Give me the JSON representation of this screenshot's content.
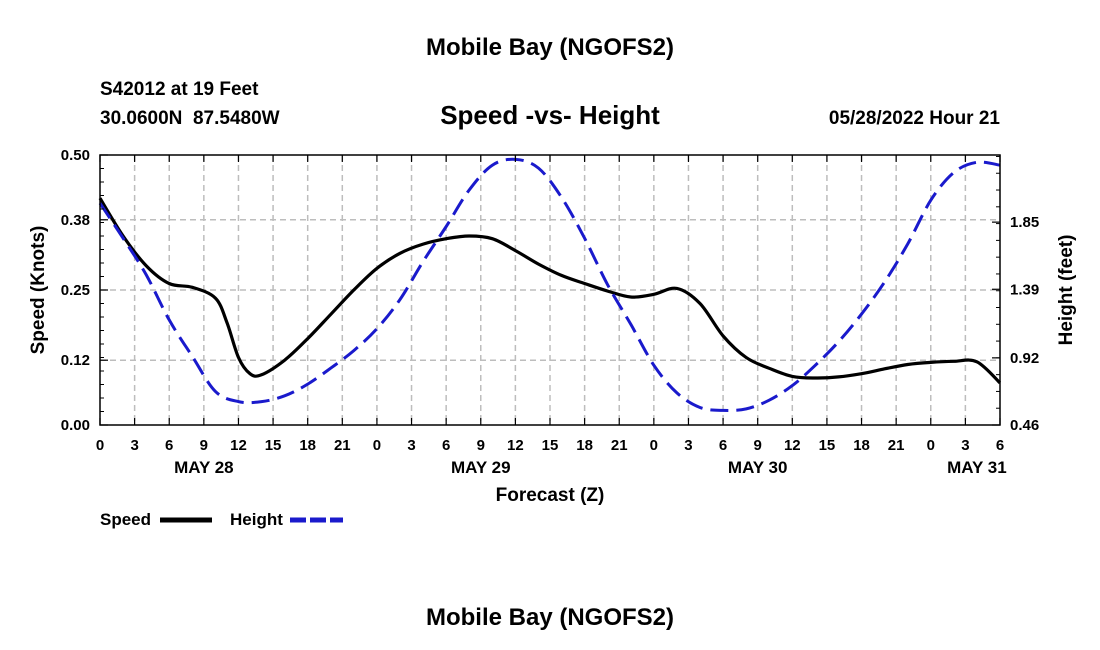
{
  "page": {
    "title": "Mobile Bay (NGOFS2)",
    "footer_title": "Mobile Bay (NGOFS2)"
  },
  "header": {
    "station_line": "S42012 at 19 Feet",
    "coords_line": "30.0600N  87.5480W",
    "chart_title": "Speed -vs- Height",
    "datetime": "05/28/2022 Hour 21"
  },
  "chart_data": {
    "type": "line",
    "title": "Speed -vs- Height",
    "xlabel": "Forecast (Z)",
    "ylabel_left": "Speed (Knots)",
    "ylabel_right": "Height (feet)",
    "x_range_hours": [
      0,
      78
    ],
    "x_tick_step_hours": 3,
    "x_tick_labels": [
      "0",
      "3",
      "6",
      "9",
      "12",
      "15",
      "18",
      "21",
      "0",
      "3",
      "6",
      "9",
      "12",
      "15",
      "18",
      "21",
      "0",
      "3",
      "6",
      "9",
      "12",
      "15",
      "18",
      "21",
      "0",
      "3",
      "6"
    ],
    "day_labels": [
      {
        "hour": 9,
        "label": "MAY 28"
      },
      {
        "hour": 33,
        "label": "MAY 29"
      },
      {
        "hour": 57,
        "label": "MAY 30"
      },
      {
        "hour": 76,
        "label": "MAY 31"
      }
    ],
    "y_left": {
      "range": [
        0.0,
        0.5
      ],
      "ticks": [
        0.0,
        0.12,
        0.25,
        0.38,
        0.5
      ],
      "tick_labels": [
        "0.00",
        "0.12",
        "0.25",
        "0.38",
        "0.50"
      ]
    },
    "y_right": {
      "range": [
        0.46,
        2.31
      ],
      "ticks": [
        0.46,
        0.92,
        1.39,
        1.85
      ],
      "tick_labels": [
        "0.46",
        "0.92",
        "1.39",
        "1.85"
      ]
    },
    "grid": true,
    "legend_position": "bottom-left",
    "series": [
      {
        "name": "Speed",
        "axis": "left",
        "color": "#000000",
        "style": "solid",
        "x": [
          0,
          2,
          4,
          6,
          8,
          10,
          11,
          12,
          13,
          14,
          16,
          18,
          20,
          22,
          24,
          26,
          28,
          30,
          32,
          34,
          36,
          38,
          40,
          42,
          44,
          46,
          48,
          50,
          52,
          54,
          56,
          58,
          60,
          62,
          64,
          66,
          68,
          70,
          72,
          74,
          76,
          78
        ],
        "y": [
          0.42,
          0.35,
          0.295,
          0.262,
          0.255,
          0.235,
          0.19,
          0.125,
          0.095,
          0.093,
          0.12,
          0.16,
          0.205,
          0.25,
          0.29,
          0.318,
          0.335,
          0.345,
          0.35,
          0.345,
          0.323,
          0.298,
          0.277,
          0.262,
          0.248,
          0.237,
          0.242,
          0.253,
          0.225,
          0.165,
          0.125,
          0.105,
          0.09,
          0.087,
          0.089,
          0.095,
          0.104,
          0.112,
          0.116,
          0.118,
          0.117,
          0.078
        ]
      },
      {
        "name": "Height",
        "axis": "right",
        "color": "#1a1acc",
        "style": "dashed",
        "x": [
          0,
          2,
          4,
          6,
          8,
          10,
          12,
          14,
          16,
          18,
          20,
          22,
          24,
          26,
          28,
          30,
          32,
          34,
          36,
          38,
          40,
          42,
          44,
          46,
          48,
          50,
          52,
          54,
          56,
          58,
          60,
          62,
          64,
          66,
          68,
          70,
          72,
          74,
          76,
          78
        ],
        "y": [
          1.98,
          1.74,
          1.49,
          1.18,
          0.93,
          0.69,
          0.62,
          0.62,
          0.66,
          0.74,
          0.85,
          0.97,
          1.12,
          1.32,
          1.58,
          1.82,
          2.07,
          2.24,
          2.28,
          2.22,
          2.02,
          1.74,
          1.42,
          1.15,
          0.87,
          0.68,
          0.58,
          0.56,
          0.57,
          0.63,
          0.73,
          0.87,
          1.03,
          1.22,
          1.44,
          1.7,
          2.0,
          2.19,
          2.26,
          2.24
        ]
      }
    ],
    "legend": [
      {
        "label": "Speed",
        "color": "#000000",
        "style": "solid"
      },
      {
        "label": "Height",
        "color": "#1a1acc",
        "style": "dashed"
      }
    ]
  }
}
